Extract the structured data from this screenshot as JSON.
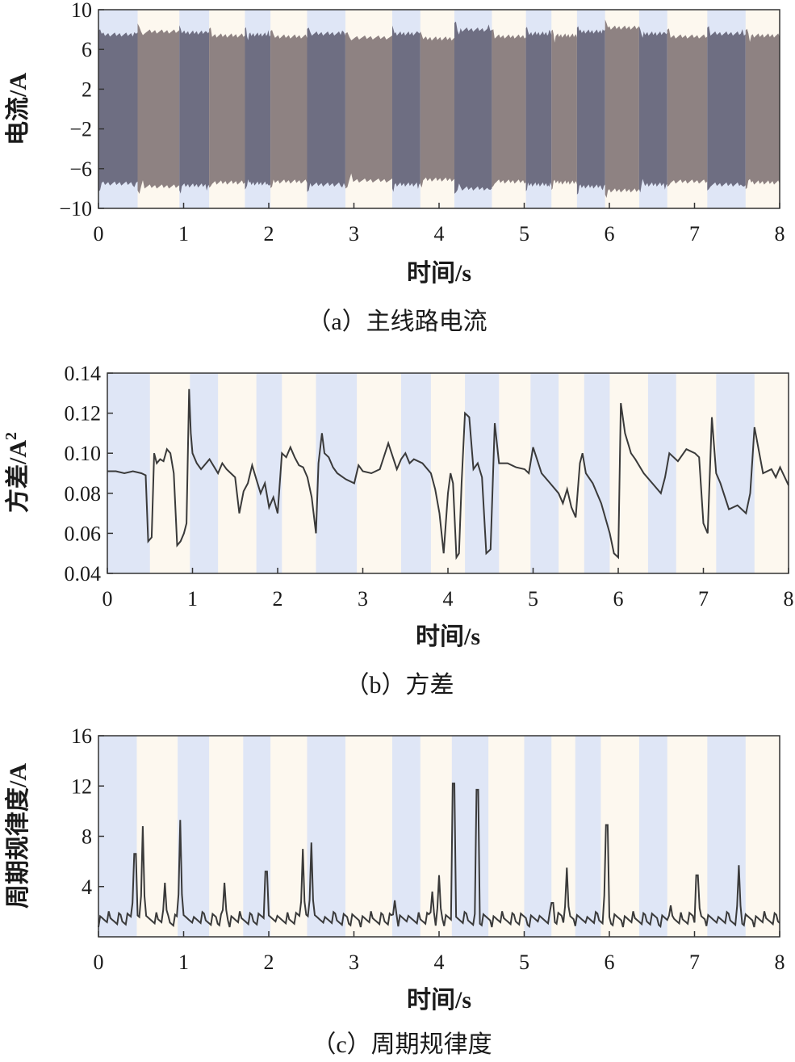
{
  "colors": {
    "band_blue": "#dfe6f6",
    "band_cream": "#fdf8ef",
    "fill_dark": "#6e6e82",
    "fill_brown": "#8e8282",
    "line": "#3a3a3a",
    "frame": "#333333"
  },
  "chart_data": [
    {
      "type": "area",
      "caption": "（a）主线路电流",
      "xlabel": "时间/s",
      "ylabel": "电流/A",
      "xlim": [
        0,
        8
      ],
      "ylim": [
        -10,
        10
      ],
      "xticks": [
        "0",
        "1",
        "2",
        "3",
        "4",
        "5",
        "6",
        "7",
        "8"
      ],
      "yticks": [
        {
          "v": 10,
          "label": "10"
        },
        {
          "v": 6,
          "label": "6"
        },
        {
          "v": 2,
          "label": "2"
        },
        {
          "v": -2,
          "label": "−2"
        },
        {
          "v": -6,
          "label": "−6"
        },
        {
          "v": -10,
          "label": "−10"
        }
      ],
      "segments": [
        {
          "x0": 0.0,
          "x1": 0.46,
          "amp": 7.5,
          "color": "dark"
        },
        {
          "x0": 0.46,
          "x1": 0.95,
          "amp": 7.8,
          "color": "brown"
        },
        {
          "x0": 0.95,
          "x1": 1.3,
          "amp": 7.7,
          "color": "dark"
        },
        {
          "x0": 1.3,
          "x1": 1.72,
          "amp": 7.4,
          "color": "brown"
        },
        {
          "x0": 1.72,
          "x1": 2.02,
          "amp": 7.5,
          "color": "dark"
        },
        {
          "x0": 2.02,
          "x1": 2.45,
          "amp": 7.3,
          "color": "brown"
        },
        {
          "x0": 2.45,
          "x1": 2.9,
          "amp": 7.6,
          "color": "dark"
        },
        {
          "x0": 2.9,
          "x1": 3.45,
          "amp": 7.2,
          "color": "brown"
        },
        {
          "x0": 3.45,
          "x1": 3.78,
          "amp": 7.6,
          "color": "dark"
        },
        {
          "x0": 3.78,
          "x1": 4.18,
          "amp": 7.1,
          "color": "brown"
        },
        {
          "x0": 4.18,
          "x1": 4.62,
          "amp": 8.0,
          "color": "dark"
        },
        {
          "x0": 4.62,
          "x1": 5.02,
          "amp": 7.3,
          "color": "brown"
        },
        {
          "x0": 5.02,
          "x1": 5.32,
          "amp": 7.6,
          "color": "dark"
        },
        {
          "x0": 5.32,
          "x1": 5.62,
          "amp": 7.4,
          "color": "brown"
        },
        {
          "x0": 5.62,
          "x1": 5.95,
          "amp": 7.8,
          "color": "dark"
        },
        {
          "x0": 5.95,
          "x1": 6.35,
          "amp": 8.2,
          "color": "brown"
        },
        {
          "x0": 6.35,
          "x1": 6.68,
          "amp": 7.6,
          "color": "dark"
        },
        {
          "x0": 6.68,
          "x1": 7.15,
          "amp": 7.3,
          "color": "brown"
        },
        {
          "x0": 7.15,
          "x1": 7.6,
          "amp": 7.6,
          "color": "dark"
        },
        {
          "x0": 7.6,
          "x1": 8.0,
          "amp": 7.4,
          "color": "brown"
        }
      ],
      "bands": [
        [
          0,
          0.46
        ],
        [
          0.95,
          1.3
        ],
        [
          1.72,
          2.02
        ],
        [
          2.45,
          2.9
        ],
        [
          3.45,
          3.78
        ],
        [
          4.18,
          4.62
        ],
        [
          5.02,
          5.32
        ],
        [
          5.62,
          5.95
        ],
        [
          6.35,
          6.68
        ],
        [
          7.15,
          7.6
        ]
      ]
    },
    {
      "type": "line",
      "caption": "（b）方差",
      "xlabel": "时间/s",
      "ylabel": "方差/A",
      "ylabel_sup": "2",
      "xlim": [
        0,
        8
      ],
      "ylim": [
        0.04,
        0.14
      ],
      "xticks": [
        "0",
        "1",
        "2",
        "3",
        "4",
        "5",
        "6",
        "7",
        "8"
      ],
      "yticks": [
        {
          "v": 0.14,
          "label": "0.14"
        },
        {
          "v": 0.12,
          "label": "0.12"
        },
        {
          "v": 0.1,
          "label": "0.10"
        },
        {
          "v": 0.08,
          "label": "0.08"
        },
        {
          "v": 0.06,
          "label": "0.06"
        },
        {
          "v": 0.04,
          "label": "0.04"
        }
      ],
      "bands": [
        [
          0,
          0.5
        ],
        [
          0.97,
          1.3
        ],
        [
          1.75,
          2.05
        ],
        [
          2.45,
          2.93
        ],
        [
          3.45,
          3.8
        ],
        [
          4.2,
          4.6
        ],
        [
          4.97,
          5.3
        ],
        [
          5.6,
          5.9
        ],
        [
          6.35,
          6.68
        ],
        [
          7.15,
          7.6
        ]
      ],
      "x": [
        0,
        0.1,
        0.2,
        0.3,
        0.4,
        0.45,
        0.48,
        0.52,
        0.55,
        0.58,
        0.62,
        0.66,
        0.7,
        0.74,
        0.78,
        0.82,
        0.86,
        0.9,
        0.93,
        0.96,
        0.98,
        1.0,
        1.05,
        1.1,
        1.2,
        1.3,
        1.35,
        1.4,
        1.45,
        1.5,
        1.55,
        1.6,
        1.65,
        1.7,
        1.75,
        1.8,
        1.85,
        1.9,
        1.95,
        2.0,
        2.05,
        2.1,
        2.15,
        2.2,
        2.25,
        2.3,
        2.35,
        2.4,
        2.45,
        2.48,
        2.52,
        2.55,
        2.6,
        2.65,
        2.7,
        2.8,
        2.9,
        2.95,
        3.0,
        3.1,
        3.2,
        3.3,
        3.4,
        3.45,
        3.5,
        3.55,
        3.6,
        3.7,
        3.8,
        3.85,
        3.9,
        3.95,
        4.0,
        4.03,
        4.06,
        4.1,
        4.13,
        4.16,
        4.2,
        4.25,
        4.3,
        4.35,
        4.4,
        4.45,
        4.5,
        4.55,
        4.6,
        4.7,
        4.8,
        4.9,
        4.95,
        5.0,
        5.1,
        5.2,
        5.3,
        5.35,
        5.4,
        5.45,
        5.5,
        5.55,
        5.58,
        5.62,
        5.7,
        5.8,
        5.9,
        5.95,
        6.0,
        6.03,
        6.08,
        6.15,
        6.2,
        6.3,
        6.4,
        6.5,
        6.55,
        6.6,
        6.7,
        6.8,
        6.9,
        6.95,
        7.0,
        7.05,
        7.1,
        7.15,
        7.2,
        7.3,
        7.4,
        7.5,
        7.55,
        7.6,
        7.7,
        7.8,
        7.85,
        7.9,
        8.0
      ],
      "y": [
        0.091,
        0.091,
        0.09,
        0.091,
        0.09,
        0.089,
        0.056,
        0.058,
        0.1,
        0.095,
        0.097,
        0.096,
        0.102,
        0.1,
        0.09,
        0.054,
        0.056,
        0.06,
        0.065,
        0.132,
        0.11,
        0.1,
        0.095,
        0.092,
        0.097,
        0.09,
        0.095,
        0.092,
        0.09,
        0.088,
        0.07,
        0.081,
        0.085,
        0.094,
        0.087,
        0.08,
        0.085,
        0.073,
        0.078,
        0.07,
        0.1,
        0.098,
        0.103,
        0.098,
        0.094,
        0.093,
        0.088,
        0.078,
        0.06,
        0.095,
        0.11,
        0.1,
        0.098,
        0.093,
        0.09,
        0.087,
        0.085,
        0.094,
        0.091,
        0.09,
        0.092,
        0.105,
        0.092,
        0.097,
        0.1,
        0.095,
        0.097,
        0.095,
        0.09,
        0.082,
        0.07,
        0.05,
        0.08,
        0.09,
        0.085,
        0.048,
        0.05,
        0.085,
        0.12,
        0.118,
        0.092,
        0.095,
        0.088,
        0.05,
        0.052,
        0.115,
        0.095,
        0.095,
        0.093,
        0.092,
        0.09,
        0.103,
        0.09,
        0.085,
        0.08,
        0.075,
        0.082,
        0.073,
        0.068,
        0.095,
        0.1,
        0.09,
        0.085,
        0.075,
        0.06,
        0.05,
        0.048,
        0.125,
        0.11,
        0.1,
        0.097,
        0.09,
        0.085,
        0.08,
        0.088,
        0.1,
        0.096,
        0.102,
        0.1,
        0.098,
        0.065,
        0.06,
        0.118,
        0.09,
        0.085,
        0.072,
        0.074,
        0.07,
        0.08,
        0.113,
        0.09,
        0.092,
        0.088,
        0.093,
        0.084
      ]
    },
    {
      "type": "line",
      "caption": "（c）周期规律度",
      "xlabel": "时间/s",
      "ylabel": "周期规律度/A",
      "xlim": [
        0,
        8
      ],
      "ylim": [
        0,
        16
      ],
      "xticks": [
        "0",
        "1",
        "2",
        "3",
        "4",
        "5",
        "6",
        "7",
        "8"
      ],
      "yticks": [
        {
          "v": 16,
          "label": "16"
        },
        {
          "v": 12,
          "label": "12"
        },
        {
          "v": 8,
          "label": "8"
        },
        {
          "v": 4,
          "label": "4"
        }
      ],
      "bands": [
        [
          0,
          0.45
        ],
        [
          0.93,
          1.3
        ],
        [
          1.7,
          2.02
        ],
        [
          2.45,
          2.9
        ],
        [
          3.45,
          3.78
        ],
        [
          4.15,
          4.58
        ],
        [
          5.0,
          5.32
        ],
        [
          5.6,
          5.9
        ],
        [
          6.35,
          6.68
        ],
        [
          7.15,
          7.6
        ]
      ],
      "baseline": 1.4,
      "peaks": [
        {
          "x": 0.43,
          "y": 6.6
        },
        {
          "x": 0.52,
          "y": 8.8
        },
        {
          "x": 0.78,
          "y": 4.3
        },
        {
          "x": 0.96,
          "y": 9.3
        },
        {
          "x": 1.48,
          "y": 4.3
        },
        {
          "x": 1.97,
          "y": 5.2
        },
        {
          "x": 2.4,
          "y": 7.0
        },
        {
          "x": 2.5,
          "y": 7.5
        },
        {
          "x": 3.48,
          "y": 2.9
        },
        {
          "x": 3.92,
          "y": 3.6
        },
        {
          "x": 4.0,
          "y": 4.9
        },
        {
          "x": 4.17,
          "y": 12.2
        },
        {
          "x": 4.45,
          "y": 11.7
        },
        {
          "x": 5.33,
          "y": 2.7
        },
        {
          "x": 5.5,
          "y": 5.5
        },
        {
          "x": 5.97,
          "y": 8.9
        },
        {
          "x": 6.72,
          "y": 2.5
        },
        {
          "x": 7.03,
          "y": 4.9
        },
        {
          "x": 7.52,
          "y": 5.7
        }
      ]
    }
  ]
}
